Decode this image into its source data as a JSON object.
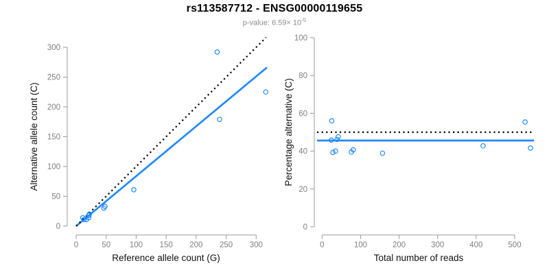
{
  "header": {
    "title": "rs113587712 - ENSG00000119655",
    "pvalue_text": "p-value: 6.59× 10",
    "pvalue_exponent": "-5"
  },
  "colors": {
    "accent_blue": "#2089FF",
    "line_black": "#000000",
    "axis_line_gray": "#999999",
    "tick_label_gray": "#7f7f7f",
    "axis_title_black": "#111111",
    "background": "#ffffff"
  },
  "chart_data": [
    {
      "type": "scatter",
      "panel": "left",
      "xlabel": "Reference allele count (G)",
      "ylabel": "Alternative allele count (C)",
      "xlim": [
        0,
        316
      ],
      "ylim": [
        0,
        316
      ],
      "xticks": [
        0,
        50,
        100,
        150,
        200,
        250,
        300
      ],
      "yticks": [
        0,
        50,
        100,
        150,
        200,
        250,
        300
      ],
      "grid": false,
      "points": [
        [
          11,
          14
        ],
        [
          13,
          11
        ],
        [
          17,
          11
        ],
        [
          21,
          14
        ],
        [
          21,
          18
        ],
        [
          22,
          20
        ],
        [
          46,
          30
        ],
        [
          48,
          33
        ],
        [
          96,
          61
        ],
        [
          239,
          179
        ],
        [
          235,
          292
        ],
        [
          316,
          225
        ]
      ],
      "lines": [
        {
          "name": "fit-line",
          "type": "abline",
          "slope": 0.837,
          "intercept": 0,
          "style": "solid",
          "color_key": "accent_blue"
        },
        {
          "name": "identity-line",
          "type": "abline",
          "slope": 1,
          "intercept": 0,
          "style": "dotted",
          "color_key": "line_black"
        }
      ]
    },
    {
      "type": "scatter",
      "panel": "right",
      "xlabel": "Total number of reads",
      "ylabel": "Percentage alternative (C)",
      "xlim": [
        0,
        541
      ],
      "ylim": [
        0,
        100
      ],
      "xticks": [
        0,
        100,
        200,
        300,
        400,
        500
      ],
      "yticks": [
        0,
        20,
        40,
        60,
        80,
        100
      ],
      "grid": false,
      "points": [
        [
          25,
          56.0
        ],
        [
          24,
          45.8
        ],
        [
          28,
          39.3
        ],
        [
          35,
          40.0
        ],
        [
          39,
          46.2
        ],
        [
          42,
          47.6
        ],
        [
          76,
          39.5
        ],
        [
          81,
          40.7
        ],
        [
          157,
          38.9
        ],
        [
          418,
          42.8
        ],
        [
          527,
          55.4
        ],
        [
          541,
          41.6
        ]
      ],
      "lines": [
        {
          "name": "mean-percentage-line",
          "type": "hline",
          "value": 45.6,
          "style": "solid",
          "color_key": "accent_blue"
        },
        {
          "name": "expected-50-line",
          "type": "hline",
          "value": 50,
          "style": "dotted",
          "color_key": "line_black"
        }
      ]
    }
  ]
}
